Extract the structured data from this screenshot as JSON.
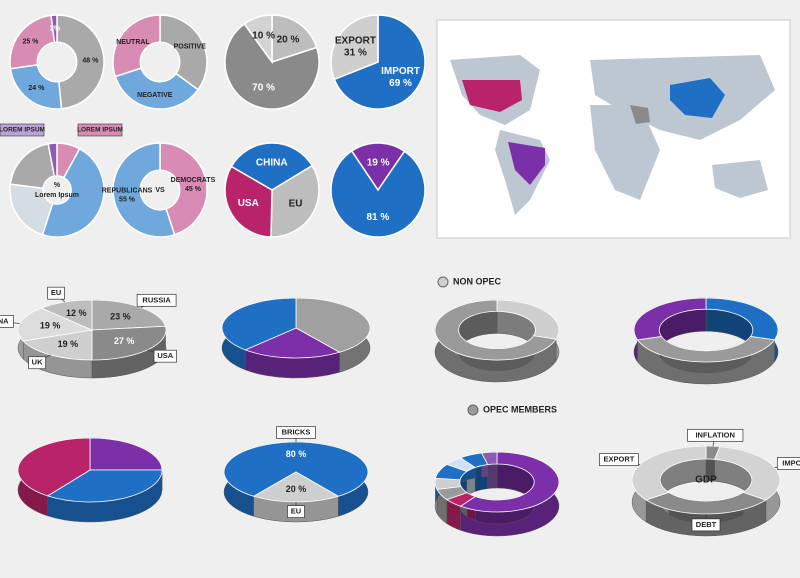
{
  "chart_data": [
    {
      "type": "donut",
      "values": [
        48,
        24,
        25,
        2
      ],
      "value_labels": [
        "48 %",
        "24 %",
        "25 %",
        "2%"
      ],
      "colors": [
        "#a9a9a9",
        "#6fa8dc",
        "#d98cb3",
        "#8e5bb5"
      ],
      "annotations": [
        "LOREM IPSUM",
        "LOREM IPSUM"
      ]
    },
    {
      "type": "donut",
      "categories": [
        "POSITIVE",
        "NEGATIVE",
        "NEUTRAL"
      ],
      "values": [
        35,
        35,
        30
      ],
      "colors": [
        "#a9a9a9",
        "#6fa8dc",
        "#d98cb3"
      ]
    },
    {
      "type": "pie",
      "values": [
        20,
        70,
        10
      ],
      "value_labels": [
        "20 %",
        "70 %",
        "10 %"
      ],
      "colors": [
        "#bdbdbd",
        "#8a8a8a",
        "#d3d3d3"
      ]
    },
    {
      "type": "pie",
      "categories": [
        "IMPORT",
        "EXPORT"
      ],
      "values": [
        69,
        31
      ],
      "value_labels": [
        "69 %",
        "31 %"
      ],
      "colors": [
        "#1f6fc5",
        "#cfcfcf"
      ]
    },
    {
      "type": "donut",
      "values": [
        8,
        47,
        22,
        20,
        3
      ],
      "colors": [
        "#d98cb3",
        "#6fa8dc",
        "#d4dce4",
        "#a9a9a9",
        "#8e5bb5"
      ],
      "center_labels": [
        "%",
        "Lorem Ipsum"
      ]
    },
    {
      "type": "donut",
      "categories": [
        "DEMOCRATS",
        "REPUBLICANS"
      ],
      "values": [
        45,
        55
      ],
      "value_labels": [
        "45 %",
        "55 %"
      ],
      "colors": [
        "#d98cb3",
        "#6fa8dc"
      ],
      "center_labels": [
        "VS"
      ]
    },
    {
      "type": "pie",
      "categories": [
        "CHINA",
        "EU",
        "USA"
      ],
      "values": [
        33,
        34,
        33
      ],
      "colors": [
        "#1f6fc5",
        "#bdbdbd",
        "#b8236a"
      ]
    },
    {
      "type": "pie",
      "values": [
        19,
        81
      ],
      "value_labels": [
        "19 %",
        "81 %"
      ],
      "colors": [
        "#7b2fa8",
        "#1f6fc5"
      ]
    },
    {
      "type": "pie",
      "3d": true,
      "categories": [
        "RUSSIA",
        "USA",
        "UK",
        "CHINA",
        "EU"
      ],
      "values": [
        23,
        27,
        19,
        19,
        12
      ],
      "value_labels": [
        "23 %",
        "27 %",
        "19 %",
        "19 %",
        "12 %"
      ],
      "colors": [
        "#a9a9a9",
        "#8a8a8a",
        "#cfcfcf",
        "#dcdcdc",
        "#bdbdbd"
      ]
    },
    {
      "type": "pie",
      "3d": true,
      "values": [
        40,
        22,
        38
      ],
      "colors": [
        "#a0a0a0",
        "#7b2fa8",
        "#1f6fc5"
      ]
    },
    {
      "type": "donut",
      "3d": true,
      "categories": [
        "NON OPEC",
        "OPEC MEMBERS"
      ],
      "values": [
        30,
        70
      ],
      "colors": [
        "#cfcfcf",
        "#9a9a9a"
      ],
      "legend": true
    },
    {
      "type": "donut",
      "3d": true,
      "values": [
        30,
        40,
        30
      ],
      "colors": [
        "#1f6fc5",
        "#9a9a9a",
        "#7b2fa8"
      ]
    },
    {
      "type": "pie",
      "3d": true,
      "values": [
        25,
        35,
        40
      ],
      "colors": [
        "#7b2fa8",
        "#1f6fc5",
        "#b8236a"
      ]
    },
    {
      "type": "pie",
      "3d": true,
      "categories": [
        "BRICKS",
        "EU"
      ],
      "values": [
        80,
        20
      ],
      "value_labels": [
        "80 %",
        "20 %"
      ],
      "colors": [
        "#1f6fc5",
        "#cfcfcf"
      ]
    },
    {
      "type": "donut",
      "3d": true,
      "values": [
        60,
        5,
        6,
        6,
        8,
        5,
        6,
        4
      ],
      "colors": [
        "#7b2fa8",
        "#b8236a",
        "#9a9a9a",
        "#cfcfcf",
        "#1f6fc5",
        "#cfe0f0",
        "#1f6fc5",
        "#8e5bb5"
      ]
    },
    {
      "type": "donut",
      "3d": true,
      "categories": [
        "INFLATION",
        "IMPORT",
        "DEBT",
        "EXPORT"
      ],
      "values": [
        3,
        32,
        30,
        35
      ],
      "colors": [
        "#8a8a8a",
        "#d3d3d3",
        "#8a8a8a",
        "#d3d3d3"
      ],
      "center_labels": [
        "GDP"
      ]
    }
  ]
}
